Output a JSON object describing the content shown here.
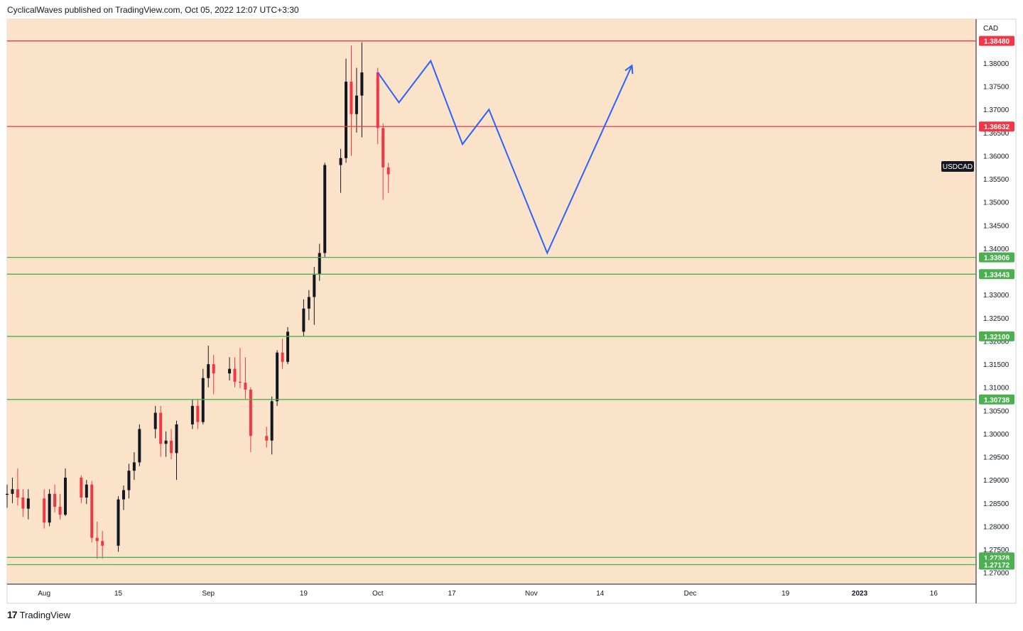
{
  "header": {
    "publisher_text": "CyclicalWaves published on TradingView.com, Oct 05, 2022 12:07 UTC+3:30"
  },
  "footer": {
    "brand": "TradingView",
    "logo_glyph": "17"
  },
  "colors": {
    "plot_background": "#fbe3c9",
    "resistance": "#f23645",
    "support": "#4caf50",
    "projection": "#2962ff",
    "candle_up": "#131722",
    "candle_down": "#f23645"
  },
  "chart_data": {
    "type": "candlestick",
    "symbol_label": "USDCAD",
    "currency_label": "CAD",
    "ylim": [
      1.2675,
      1.3895
    ],
    "xlim": [
      "2022-07-25",
      "2023-01-24"
    ],
    "y_ticks": [
      "1.38000",
      "1.37500",
      "1.37000",
      "1.36500",
      "1.36000",
      "1.35500",
      "1.35000",
      "1.34500",
      "1.34000",
      "1.33500",
      "1.33000",
      "1.32500",
      "1.32000",
      "1.31500",
      "1.31000",
      "1.30500",
      "1.30000",
      "1.29500",
      "1.29000",
      "1.28500",
      "1.28000",
      "1.27500",
      "1.27000"
    ],
    "x_ticks": [
      {
        "label": "Aug",
        "date": "2022-08-01"
      },
      {
        "label": "15",
        "date": "2022-08-15"
      },
      {
        "label": "Sep",
        "date": "2022-09-01"
      },
      {
        "label": "19",
        "date": "2022-09-19"
      },
      {
        "label": "Oct",
        "date": "2022-10-03"
      },
      {
        "label": "17",
        "date": "2022-10-17"
      },
      {
        "label": "Nov",
        "date": "2022-11-01"
      },
      {
        "label": "14",
        "date": "2022-11-14"
      },
      {
        "label": "Dec",
        "date": "2022-12-01"
      },
      {
        "label": "19",
        "date": "2022-12-19"
      },
      {
        "label": "2023",
        "date": "2023-01-02"
      },
      {
        "label": "16",
        "date": "2023-01-16"
      }
    ],
    "horizontal_levels": [
      {
        "value": 1.3848,
        "label": "1.38480",
        "kind": "resistance"
      },
      {
        "value": 1.36632,
        "label": "1.36632",
        "kind": "resistance"
      },
      {
        "value": 1.33806,
        "label": "1.33806",
        "kind": "support"
      },
      {
        "value": 1.33443,
        "label": "1.33443",
        "kind": "support"
      },
      {
        "value": 1.321,
        "label": "1.32100",
        "kind": "support"
      },
      {
        "value": 1.30738,
        "label": "1.30738",
        "kind": "support"
      },
      {
        "value": 1.27328,
        "label": "1.27328",
        "kind": "support"
      },
      {
        "value": 1.27172,
        "label": "1.27172",
        "kind": "support"
      }
    ],
    "projection_path": [
      {
        "date": "2022-10-03",
        "value": 1.378
      },
      {
        "date": "2022-10-07",
        "value": 1.3715
      },
      {
        "date": "2022-10-13",
        "value": 1.3805
      },
      {
        "date": "2022-10-19",
        "value": 1.3625
      },
      {
        "date": "2022-10-24",
        "value": 1.37
      },
      {
        "date": "2022-11-04",
        "value": 1.339
      },
      {
        "date": "2022-11-20",
        "value": 1.3795
      }
    ],
    "candles": [
      [
        "2022-07-25",
        1.2868,
        1.289,
        1.284,
        1.287
      ],
      [
        "2022-07-26",
        1.287,
        1.2905,
        1.285,
        1.288
      ],
      [
        "2022-07-27",
        1.288,
        1.2925,
        1.2845,
        1.2862
      ],
      [
        "2022-07-28",
        1.2862,
        1.288,
        1.282,
        1.2838
      ],
      [
        "2022-07-29",
        1.2838,
        1.288,
        1.2815,
        1.286
      ],
      [
        "2022-08-01",
        1.286,
        1.288,
        1.2795,
        1.2808
      ],
      [
        "2022-08-02",
        1.2808,
        1.288,
        1.28,
        1.287
      ],
      [
        "2022-08-03",
        1.287,
        1.289,
        1.283,
        1.2842
      ],
      [
        "2022-08-04",
        1.2842,
        1.287,
        1.2815,
        1.2825
      ],
      [
        "2022-08-05",
        1.2825,
        1.2925,
        1.2822,
        1.2905
      ],
      [
        "2022-08-08",
        1.2905,
        1.291,
        1.285,
        1.2862
      ],
      [
        "2022-08-09",
        1.2862,
        1.29,
        1.2848,
        1.289
      ],
      [
        "2022-08-10",
        1.289,
        1.2898,
        1.2765,
        1.2775
      ],
      [
        "2022-08-11",
        1.2775,
        1.281,
        1.273,
        1.2768
      ],
      [
        "2022-08-12",
        1.2768,
        1.279,
        1.273,
        1.2758
      ],
      [
        "2022-08-15",
        1.2758,
        1.2865,
        1.2745,
        1.2858
      ],
      [
        "2022-08-16",
        1.2858,
        1.2888,
        1.2835,
        1.2878
      ],
      [
        "2022-08-17",
        1.2878,
        1.2935,
        1.286,
        1.292
      ],
      [
        "2022-08-18",
        1.292,
        1.296,
        1.29,
        1.2938
      ],
      [
        "2022-08-19",
        1.2938,
        1.302,
        1.293,
        1.301
      ],
      [
        "2022-08-22",
        1.301,
        1.306,
        1.299,
        1.3045
      ],
      [
        "2022-08-23",
        1.3045,
        1.306,
        1.295,
        1.2978
      ],
      [
        "2022-08-24",
        1.2978,
        1.3005,
        1.295,
        1.2985
      ],
      [
        "2022-08-25",
        1.2985,
        1.301,
        1.2945,
        1.2958
      ],
      [
        "2022-08-26",
        1.2958,
        1.3028,
        1.29,
        1.302
      ],
      [
        "2022-08-29",
        1.302,
        1.3075,
        1.301,
        1.306
      ],
      [
        "2022-08-30",
        1.306,
        1.3075,
        1.301,
        1.3025
      ],
      [
        "2022-08-31",
        1.3025,
        1.314,
        1.302,
        1.312
      ],
      [
        "2022-09-01",
        1.312,
        1.319,
        1.31,
        1.315
      ],
      [
        "2022-09-02",
        1.315,
        1.317,
        1.3085,
        1.313
      ],
      [
        "2022-09-05",
        1.313,
        1.3165,
        1.3115,
        1.314
      ],
      [
        "2022-09-06",
        1.314,
        1.3165,
        1.31,
        1.3112
      ],
      [
        "2022-09-07",
        1.3112,
        1.3185,
        1.3098,
        1.311
      ],
      [
        "2022-09-08",
        1.311,
        1.3165,
        1.3075,
        1.3095
      ],
      [
        "2022-09-09",
        1.3095,
        1.31,
        1.296,
        1.2995
      ],
      [
        "2022-09-12",
        1.2995,
        1.3015,
        1.297,
        1.2985
      ],
      [
        "2022-09-13",
        1.2985,
        1.308,
        1.2955,
        1.307
      ],
      [
        "2022-09-14",
        1.307,
        1.318,
        1.306,
        1.3175
      ],
      [
        "2022-09-15",
        1.3175,
        1.3205,
        1.314,
        1.3155
      ],
      [
        "2022-09-16",
        1.3155,
        1.323,
        1.315,
        1.322
      ],
      [
        "2022-09-19",
        1.322,
        1.329,
        1.321,
        1.327
      ],
      [
        "2022-09-20",
        1.327,
        1.331,
        1.3245,
        1.3295
      ],
      [
        "2022-09-21",
        1.3295,
        1.336,
        1.3235,
        1.3345
      ],
      [
        "2022-09-22",
        1.3345,
        1.341,
        1.333,
        1.339
      ],
      [
        "2022-09-23",
        1.339,
        1.3585,
        1.338,
        1.358
      ],
      [
        "2022-09-26",
        1.358,
        1.3615,
        1.352,
        1.3595
      ],
      [
        "2022-09-27",
        1.3595,
        1.381,
        1.3585,
        1.376
      ],
      [
        "2022-09-28",
        1.376,
        1.3838,
        1.36,
        1.369
      ],
      [
        "2022-09-29",
        1.369,
        1.379,
        1.365,
        1.373
      ],
      [
        "2022-09-30",
        1.373,
        1.3845,
        1.364,
        1.378
      ],
      [
        "2022-10-03",
        1.378,
        1.379,
        1.3625,
        1.366
      ],
      [
        "2022-10-04",
        1.366,
        1.367,
        1.3505,
        1.3575
      ],
      [
        "2022-10-05",
        1.3575,
        1.3585,
        1.352,
        1.356
      ]
    ]
  }
}
